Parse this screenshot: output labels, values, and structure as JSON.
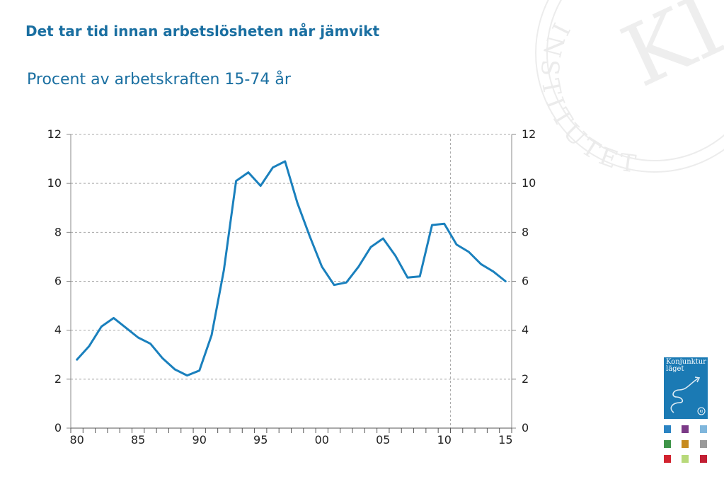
{
  "title": "Det tar tid innan arbetslösheten når jämvikt",
  "subtitle": "Procent av arbetskraften 15-74 år",
  "chart_data": {
    "type": "line",
    "x": [
      1980,
      1981,
      1982,
      1983,
      1984,
      1985,
      1986,
      1987,
      1988,
      1989,
      1990,
      1991,
      1992,
      1993,
      1994,
      1995,
      1996,
      1997,
      1998,
      1999,
      2000,
      2001,
      2002,
      2003,
      2004,
      2005,
      2006,
      2007,
      2008,
      2009,
      2010,
      2011,
      2012,
      2013,
      2014,
      2015
    ],
    "series": [
      {
        "values": [
          2.8,
          3.35,
          4.15,
          4.5,
          4.1,
          3.7,
          3.45,
          2.85,
          2.4,
          2.15,
          2.35,
          3.8,
          6.45,
          10.1,
          10.45,
          9.9,
          10.65,
          10.9,
          9.2,
          7.85,
          6.6,
          5.85,
          5.95,
          6.6,
          7.4,
          7.75,
          7.05,
          6.15,
          6.2,
          8.3,
          8.35,
          7.5,
          7.2,
          6.7,
          6.4,
          6.0
        ],
        "color": "#1a80bd"
      }
    ],
    "x_tick_values": [
      1980,
      1985,
      1990,
      1995,
      2000,
      2005,
      2010,
      2015
    ],
    "x_tick_labels": [
      "80",
      "85",
      "90",
      "95",
      "00",
      "05",
      "10",
      "15"
    ],
    "y_ticks": [
      0,
      2,
      4,
      6,
      8,
      10,
      12
    ],
    "ylim": [
      0,
      12
    ],
    "xlim": [
      1979.5,
      2015.5
    ],
    "y_axis_both_sides": true,
    "grid": "dashed horizontal",
    "reference_line_x": 2010.5
  },
  "logo": {
    "cover_title": "Konjunktur\nläget",
    "seal_text": "INSTITUTET",
    "seal_monogram": "KI",
    "cover_badge": "KI"
  },
  "colors": {
    "text": "#1a6fa1",
    "line": "#1a80bd",
    "cover": "#1b7ab4",
    "thumbnails": [
      "#2b84c3",
      "#7b3a87",
      "#7fb6dc",
      "#3e9448",
      "#c78b1f",
      "#9a9a9a",
      "#d2232f",
      "#b8d97a",
      "#c21f34"
    ]
  }
}
